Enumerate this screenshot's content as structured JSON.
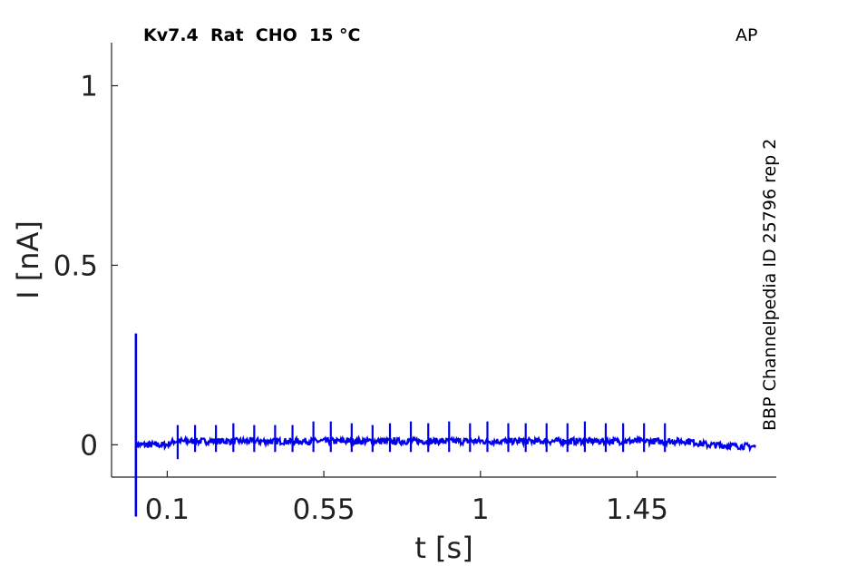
{
  "header": {
    "title": "Kv7.4  Rat  CHO  15 °C",
    "protocol": "AP",
    "side_label": "BBP Channelpedia ID 25796 rep 2"
  },
  "chart_data": {
    "type": "line",
    "title": "Kv7.4  Rat  CHO  15 °C",
    "xlabel": "t [s]",
    "ylabel": "I [nA]",
    "xlim": [
      -0.06,
      1.85
    ],
    "ylim": [
      -0.09,
      1.12
    ],
    "xticks": [
      0.1,
      0.55,
      1,
      1.45
    ],
    "xtick_labels": [
      "0.1",
      "0.55",
      "1",
      "1.45"
    ],
    "yticks": [
      0,
      0.5,
      1
    ],
    "ytick_labels": [
      "0",
      "0.5",
      "1"
    ],
    "grid": false,
    "series": [
      {
        "color": "#0000ee",
        "baseline": {
          "x": [
            0.01,
            0.1,
            0.12,
            1.6,
            1.65,
            1.79
          ],
          "y": [
            0.0,
            0.0,
            0.01,
            0.01,
            0.0,
            -0.005
          ]
        },
        "stimulus_artifact": {
          "x": 0.01,
          "y_min": -0.2,
          "y_max": 0.31
        },
        "spikes": {
          "x": [
            0.13,
            0.18,
            0.24,
            0.29,
            0.35,
            0.41,
            0.46,
            0.52,
            0.57,
            0.63,
            0.69,
            0.74,
            0.8,
            0.85,
            0.91,
            0.97,
            1.02,
            1.08,
            1.13,
            1.19,
            1.25,
            1.3,
            1.36,
            1.41,
            1.47,
            1.53
          ],
          "y_max": [
            0.055,
            0.055,
            0.055,
            0.06,
            0.055,
            0.055,
            0.055,
            0.065,
            0.065,
            0.06,
            0.055,
            0.06,
            0.065,
            0.06,
            0.065,
            0.06,
            0.065,
            0.06,
            0.06,
            0.06,
            0.06,
            0.065,
            0.06,
            0.06,
            0.06,
            0.06
          ],
          "y_min": [
            -0.04,
            -0.02,
            -0.02,
            -0.02,
            -0.02,
            -0.02,
            -0.02,
            -0.02,
            -0.02,
            -0.02,
            -0.02,
            -0.02,
            -0.02,
            -0.02,
            -0.02,
            -0.02,
            -0.02,
            -0.02,
            -0.02,
            -0.02,
            -0.02,
            -0.02,
            -0.02,
            -0.02,
            -0.02,
            -0.02
          ]
        }
      }
    ]
  }
}
